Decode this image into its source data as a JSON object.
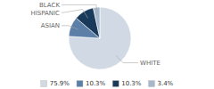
{
  "chart_data": {
    "type": "pie",
    "categories": [
      "WHITE",
      "ASIAN",
      "HISPANIC",
      "BLACK"
    ],
    "values": [
      75.9,
      10.3,
      10.3,
      3.4
    ],
    "value_labels": [
      "75.9%",
      "10.3%",
      "10.3%",
      "3.4%"
    ],
    "colors": [
      "#d0d9e4",
      "#5b7fa6",
      "#1a3a5c",
      "#a8b8cc"
    ],
    "legend": "bottom"
  }
}
